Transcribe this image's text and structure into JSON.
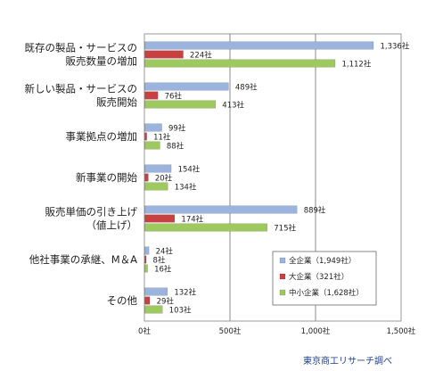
{
  "chart_data": {
    "type": "bar",
    "orientation": "horizontal",
    "categories": [
      [
        "既存の製品・サービスの",
        "販売数量の増加"
      ],
      [
        "新しい製品・サービスの",
        "販売開始"
      ],
      [
        "事業拠点の増加"
      ],
      [
        "新事業の開始"
      ],
      [
        "販売単価の引き上げ",
        "（値上げ）"
      ],
      [
        "他社事業の承継、M＆A"
      ],
      [
        "その他"
      ]
    ],
    "series": [
      {
        "name": "全企業（1,949社）",
        "color": "#9ab4de",
        "values": [
          1336,
          489,
          99,
          154,
          889,
          24,
          132
        ],
        "labels": [
          "1,336社",
          "489社",
          "99社",
          "154社",
          "889社",
          "24社",
          "132社"
        ]
      },
      {
        "name": "大企業（321社）",
        "color": "#c8403f",
        "values": [
          224,
          76,
          11,
          20,
          174,
          8,
          29
        ],
        "labels": [
          "224社",
          "76社",
          "11社",
          "20社",
          "174社",
          "8社",
          "29社"
        ]
      },
      {
        "name": "中小企業（1,628社）",
        "color": "#9ec95f",
        "values": [
          1112,
          413,
          88,
          134,
          715,
          16,
          103
        ],
        "labels": [
          "1,112社",
          "413社",
          "88社",
          "134社",
          "715社",
          "16社",
          "103社"
        ]
      }
    ],
    "xlim": [
      0,
      1500
    ],
    "xticks": [
      0,
      500,
      1000,
      1500
    ],
    "xtick_labels": [
      "0社",
      "500社",
      "1,000社",
      "1,500社"
    ],
    "grid": true,
    "legend_position": "lower-right"
  },
  "source": "東京商工リサーチ調べ"
}
